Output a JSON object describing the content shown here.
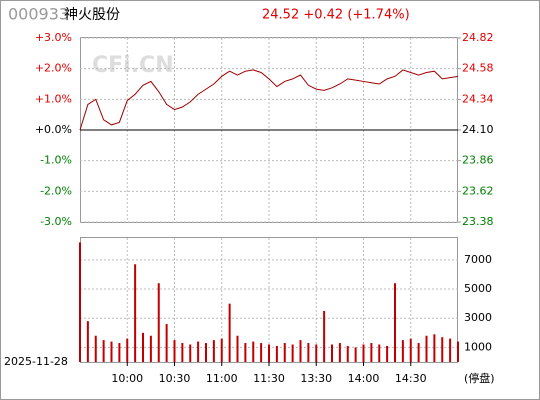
{
  "chart_data": [
    {
      "type": "line",
      "title": "000933",
      "subtitle": "神火股份",
      "annotations": [
        "24.52 +0.42 (+1.74%)",
        "CFi.CN"
      ],
      "x": [
        0,
        5,
        10,
        15,
        20,
        25,
        30,
        35,
        40,
        45,
        50,
        55,
        60,
        65,
        70,
        75,
        80,
        85,
        90,
        95,
        100,
        105,
        110,
        115,
        120,
        125,
        130,
        135,
        140,
        145,
        150,
        155,
        160,
        165,
        170,
        175,
        180,
        185,
        190,
        195,
        200,
        205,
        210,
        215,
        220,
        225,
        230,
        235,
        240
      ],
      "xlim": [
        0,
        240
      ],
      "series": [
        {
          "color": "#a00000",
          "axis": "y2",
          "values": [
            24.1,
            24.3,
            24.34,
            24.18,
            24.14,
            24.16,
            24.33,
            24.38,
            24.45,
            24.48,
            24.4,
            24.3,
            24.26,
            24.28,
            24.32,
            24.38,
            24.42,
            24.46,
            24.52,
            24.56,
            24.53,
            24.56,
            24.57,
            24.55,
            24.5,
            24.44,
            24.48,
            24.5,
            24.53,
            24.45,
            24.42,
            24.41,
            24.43,
            24.46,
            24.5,
            24.49,
            24.48,
            24.47,
            24.46,
            24.5,
            24.52,
            24.57,
            24.55,
            24.53,
            24.55,
            24.56,
            24.5,
            24.51,
            24.52
          ]
        }
      ],
      "ylim": [
        -3,
        3
      ],
      "yticks": [
        {
          "value": 3,
          "label": "+3.0%"
        },
        {
          "value": 2,
          "label": "+2.0%"
        },
        {
          "value": 1,
          "label": "+1.0%"
        },
        {
          "value": 0,
          "label": "+0.0%"
        },
        {
          "value": -1,
          "label": "-1.0%"
        },
        {
          "value": -2,
          "label": "-2.0%"
        },
        {
          "value": -3,
          "label": "-3.0%"
        }
      ],
      "y2lim": [
        23.38,
        24.82
      ],
      "y2ticks": [
        24.82,
        24.58,
        24.34,
        {
          "value": 24.1,
          "label": "24.10"
        },
        23.86,
        23.62,
        23.38
      ],
      "colors": {
        "up": "#e00000",
        "down": "#008000",
        "flat": "#000000"
      },
      "grid": true
    },
    {
      "type": "bar",
      "date": "2025-11-28",
      "y_label": "(停盘)",
      "x": [
        0,
        5,
        10,
        15,
        20,
        25,
        30,
        35,
        40,
        45,
        50,
        55,
        60,
        65,
        70,
        75,
        80,
        85,
        90,
        95,
        100,
        105,
        110,
        115,
        120,
        125,
        130,
        135,
        140,
        145,
        150,
        155,
        160,
        165,
        170,
        175,
        180,
        185,
        190,
        195,
        200,
        205,
        210,
        215,
        220,
        225,
        230,
        235,
        240
      ],
      "xlim": [
        0,
        240
      ],
      "xticks": [
        {
          "value": 30,
          "label": "10:00"
        },
        {
          "value": 60,
          "label": "10:30"
        },
        {
          "value": 90,
          "label": "11:00"
        },
        {
          "value": 120,
          "label": "11:30"
        },
        {
          "value": 150,
          "label": "13:30"
        },
        {
          "value": 180,
          "label": "14:00"
        },
        {
          "value": 210,
          "label": "14:30"
        }
      ],
      "values": [
        8200,
        2800,
        1800,
        1500,
        1400,
        1300,
        1600,
        6700,
        2000,
        1800,
        5400,
        2600,
        1500,
        1300,
        1200,
        1400,
        1300,
        1500,
        1600,
        4000,
        1800,
        1300,
        1400,
        1300,
        1200,
        1100,
        1300,
        1200,
        1500,
        1300,
        1200,
        3500,
        1200,
        1300,
        1100,
        1000,
        1200,
        1300,
        1200,
        1100,
        5400,
        1500,
        1600,
        1300,
        1800,
        1900,
        1700,
        1600,
        1400
      ],
      "color": "#c00000",
      "ylim": [
        0,
        8500
      ],
      "yticks": [
        1000,
        3000,
        5000,
        7000
      ],
      "grid": true
    }
  ]
}
